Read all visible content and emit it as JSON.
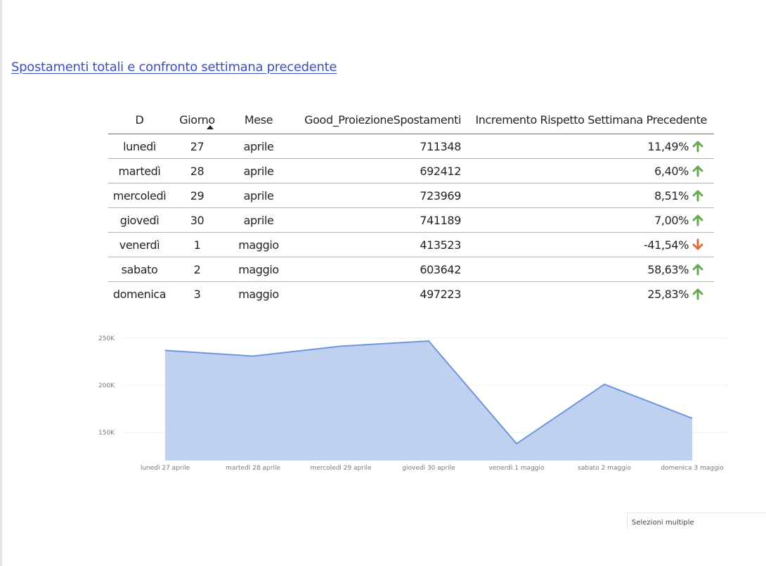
{
  "report": {
    "title": "Spostamenti totali e confronto settimana precedente"
  },
  "table": {
    "headers": {
      "d": "D",
      "giorno": "Giorno",
      "mese": "Mese",
      "proiezione": "Good_ProiezioneSpostamenti",
      "incremento": "Incremento Rispetto Settimana Precedente"
    },
    "sorted_column": "mese",
    "sort_direction": "ascending",
    "rows": [
      {
        "d": "lunedì",
        "giorno": "27",
        "mese": "aprile",
        "proiezione": "711348",
        "incremento": "11,49%",
        "trend": "up"
      },
      {
        "d": "martedì",
        "giorno": "28",
        "mese": "aprile",
        "proiezione": "692412",
        "incremento": "6,40%",
        "trend": "up"
      },
      {
        "d": "mercoledì",
        "giorno": "29",
        "mese": "aprile",
        "proiezione": "723969",
        "incremento": "8,51%",
        "trend": "up"
      },
      {
        "d": "giovedì",
        "giorno": "30",
        "mese": "aprile",
        "proiezione": "741189",
        "incremento": "7,00%",
        "trend": "up"
      },
      {
        "d": "venerdì",
        "giorno": "1",
        "mese": "maggio",
        "proiezione": "413523",
        "incremento": "-41,54%",
        "trend": "down"
      },
      {
        "d": "sabato",
        "giorno": "2",
        "mese": "maggio",
        "proiezione": "603642",
        "incremento": "58,63%",
        "trend": "up"
      },
      {
        "d": "domenica",
        "giorno": "3",
        "mese": "maggio",
        "proiezione": "497223",
        "incremento": "25,83%",
        "trend": "up"
      }
    ],
    "colors": {
      "up": "#6aa84f",
      "down": "#e06c3a"
    }
  },
  "chart_data": {
    "type": "area",
    "categories": [
      "lunedì 27 aprile",
      "martedì 28 aprile",
      "mercoledì 29 aprile",
      "giovedì 30 aprile",
      "venerdì 1 maggio",
      "sabato 2 maggio",
      "domenica 3 maggio"
    ],
    "series": [
      {
        "values": [
          237000,
          231000,
          241500,
          247000,
          138000,
          201000,
          165000
        ]
      }
    ],
    "y_ticks": [
      "150K",
      "200K",
      "250K"
    ],
    "y_tick_values": [
      150000,
      200000,
      250000
    ],
    "ylim": [
      120000,
      260000
    ],
    "grid": true,
    "fill_color": "#c0d1ef",
    "line_color": "#6d96dc"
  },
  "slicer": {
    "label": "Selezioni multiple"
  }
}
